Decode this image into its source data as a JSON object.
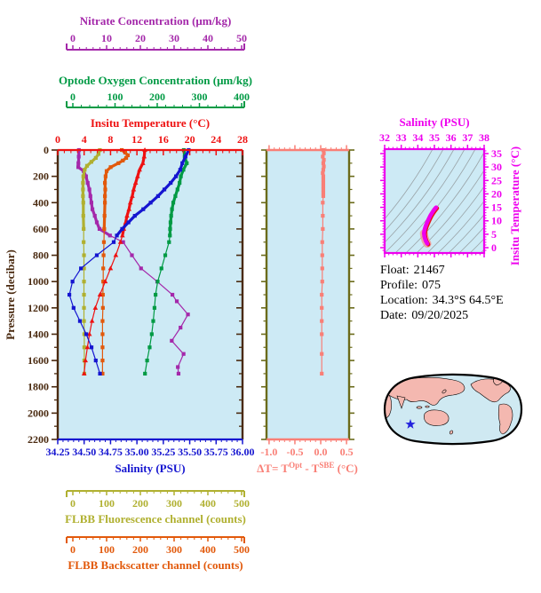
{
  "page": {
    "background": "#ffffff"
  },
  "info": {
    "lines": [
      {
        "label": "Float:",
        "value": "21467"
      },
      {
        "label": "Profile:",
        "value": "075"
      },
      {
        "label": "Location:",
        "value": "34.3°S  64.5°E"
      },
      {
        "label": "Date:",
        "value": "09/20/2025"
      }
    ]
  },
  "colors": {
    "plot_bg": "#cdeaf5",
    "pressure_axis": "#4a2a10",
    "nitrate": "#a428aa",
    "oxygen": "#009a44",
    "temperature": "#ee1111",
    "salinity": "#1515d0",
    "fluorescence": "#b0b030",
    "backscatter": "#e2590b",
    "delta_t": "#f97f76",
    "mid_spine": "#6b6b1b",
    "ts_frame": "#ee00ee",
    "ts_curve": "#ee00ee",
    "ts_curve_under": "#e8150f",
    "ts_contour": "#9aa4a8",
    "map_land": "#f4b8b0",
    "map_ocean": "#cfe9f2",
    "map_outline": "#000000",
    "star": "#2222dd"
  },
  "chart_data": [
    {
      "id": "profiles",
      "type": "line",
      "y_axis": {
        "label": "Pressure (decibar)",
        "range": [
          0,
          2200
        ],
        "ticks": [
          0,
          200,
          400,
          600,
          800,
          1000,
          1200,
          1400,
          1600,
          1800,
          2000,
          2200
        ],
        "minor_step": 100,
        "color": "#4a2a10"
      },
      "x_axes": [
        {
          "id": "nitrate",
          "label": "Nitrate Concentration (μm/kg)",
          "range": [
            0,
            50
          ],
          "ticks": [
            0,
            10,
            20,
            30,
            40,
            50
          ],
          "minor_step": 2,
          "color": "#a428aa",
          "placement": "top-detached-1"
        },
        {
          "id": "oxygen",
          "label": "Optode Oxygen Concentration (μm/kg)",
          "range": [
            0,
            400
          ],
          "ticks": [
            0,
            100,
            200,
            300,
            400
          ],
          "minor_step": 20,
          "color": "#009a44",
          "placement": "top-detached-2"
        },
        {
          "id": "temperature",
          "label": "Insitu Temperature (°C)",
          "range": [
            0,
            28
          ],
          "ticks": [
            0,
            4,
            8,
            12,
            16,
            20,
            24,
            28
          ],
          "minor_step": 1,
          "color": "#ee1111",
          "placement": "top-edge"
        },
        {
          "id": "salinity",
          "label": "Salinity (PSU)",
          "range": [
            34.25,
            36.0
          ],
          "ticks": [
            34.25,
            34.5,
            34.75,
            35.0,
            35.25,
            35.5,
            35.75,
            36.0
          ],
          "tick_labels": [
            "34.25",
            "34.50",
            "34.75",
            "35.00",
            "35.25",
            "35.50",
            "35.75",
            "36.00"
          ],
          "minor_step": 0.05,
          "color": "#1515d0",
          "placement": "bottom-edge"
        },
        {
          "id": "fluorescence",
          "label": "FLBB Fluorescence channel (counts)",
          "range": [
            0,
            500
          ],
          "ticks": [
            0,
            100,
            200,
            300,
            400,
            500
          ],
          "minor_step": 20,
          "color": "#b0b030",
          "placement": "bottom-detached-1"
        },
        {
          "id": "backscatter",
          "label": "FLBB Backscatter channel (counts)",
          "range": [
            0,
            500
          ],
          "ticks": [
            0,
            100,
            200,
            300,
            400,
            500
          ],
          "minor_step": 20,
          "color": "#e2590b",
          "placement": "bottom-detached-2"
        }
      ],
      "series": [
        {
          "name": "nitrate",
          "axis": "nitrate",
          "color": "#a428aa",
          "marker": "square",
          "points": [
            [
              0,
              1.8
            ],
            [
              50,
              1.75
            ],
            [
              100,
              1.65
            ],
            [
              130,
              1.6
            ],
            [
              160,
              3.2
            ],
            [
              200,
              3.9
            ],
            [
              250,
              4.4
            ],
            [
              300,
              4.9
            ],
            [
              350,
              5.2
            ],
            [
              400,
              5.5
            ],
            [
              450,
              5.8
            ],
            [
              500,
              6.5
            ],
            [
              550,
              7.1
            ],
            [
              600,
              7.9
            ],
            [
              650,
              11.0
            ],
            [
              700,
              14.9
            ],
            [
              800,
              17.5
            ],
            [
              900,
              20.2
            ],
            [
              1000,
              25.0
            ],
            [
              1100,
              29.5
            ],
            [
              1150,
              30.8
            ],
            [
              1250,
              34.1
            ],
            [
              1350,
              31.9
            ],
            [
              1450,
              29.3
            ],
            [
              1550,
              32.8
            ],
            [
              1650,
              31.1
            ],
            [
              1700,
              31.3
            ]
          ]
        },
        {
          "name": "fluorescence",
          "axis": "fluorescence",
          "color": "#b0b030",
          "marker": "square",
          "points": [
            [
              0,
              80
            ],
            [
              30,
              76
            ],
            [
              60,
              68
            ],
            [
              90,
              55
            ],
            [
              120,
              42
            ],
            [
              150,
              35
            ],
            [
              200,
              31
            ],
            [
              250,
              30
            ],
            [
              300,
              30
            ],
            [
              350,
              30
            ],
            [
              400,
              31
            ],
            [
              500,
              31
            ],
            [
              600,
              32
            ],
            [
              700,
              32
            ],
            [
              800,
              33
            ],
            [
              900,
              33
            ],
            [
              1000,
              33
            ],
            [
              1100,
              33
            ],
            [
              1200,
              33
            ],
            [
              1300,
              33
            ],
            [
              1400,
              34
            ],
            [
              1500,
              34
            ],
            [
              1600,
              34
            ],
            [
              1700,
              34
            ]
          ]
        },
        {
          "name": "backscatter",
          "axis": "backscatter",
          "color": "#e2590b",
          "marker": "square",
          "points": [
            [
              0,
              145
            ],
            [
              20,
              155
            ],
            [
              40,
              163
            ],
            [
              60,
              158
            ],
            [
              80,
              148
            ],
            [
              100,
              135
            ],
            [
              130,
              112
            ],
            [
              160,
              100
            ],
            [
              200,
              97
            ],
            [
              250,
              95
            ],
            [
              300,
              96
            ],
            [
              350,
              95
            ],
            [
              400,
              95
            ],
            [
              500,
              94
            ],
            [
              600,
              93
            ],
            [
              700,
              92
            ],
            [
              800,
              91
            ],
            [
              900,
              90
            ],
            [
              1000,
              90
            ],
            [
              1100,
              89
            ],
            [
              1200,
              89
            ],
            [
              1300,
              88
            ],
            [
              1400,
              88
            ],
            [
              1500,
              88
            ],
            [
              1600,
              88
            ],
            [
              1700,
              88
            ]
          ]
        },
        {
          "name": "oxygen",
          "axis": "oxygen",
          "color": "#009a44",
          "marker": "square",
          "points": [
            [
              0,
              263
            ],
            [
              50,
              265
            ],
            [
              100,
              270
            ],
            [
              150,
              262
            ],
            [
              200,
              256
            ],
            [
              250,
              253
            ],
            [
              300,
              248
            ],
            [
              350,
              243
            ],
            [
              400,
              238
            ],
            [
              450,
              235
            ],
            [
              500,
              233
            ],
            [
              550,
              231.5
            ],
            [
              600,
              230.5
            ],
            [
              650,
              230
            ],
            [
              700,
              228
            ],
            [
              800,
              219
            ],
            [
              900,
              210
            ],
            [
              1000,
              201
            ],
            [
              1100,
              196
            ],
            [
              1200,
              193.5
            ],
            [
              1300,
              190.5
            ],
            [
              1400,
              187
            ],
            [
              1500,
              182
            ],
            [
              1600,
              176
            ],
            [
              1700,
              171
            ]
          ]
        },
        {
          "name": "temperature",
          "axis": "temperature",
          "color": "#ee1111",
          "marker": "triangle",
          "points": [
            [
              0,
              13.2
            ],
            [
              50,
              13.1
            ],
            [
              100,
              12.9
            ],
            [
              150,
              12.4
            ],
            [
              200,
              12.1
            ],
            [
              250,
              11.8
            ],
            [
              300,
              11.5
            ],
            [
              350,
              11.3
            ],
            [
              400,
              11.0
            ],
            [
              450,
              10.8
            ],
            [
              500,
              10.5
            ],
            [
              550,
              10.3
            ],
            [
              600,
              10.0
            ],
            [
              650,
              9.8
            ],
            [
              700,
              9.5
            ],
            [
              800,
              8.8
            ],
            [
              900,
              8.0
            ],
            [
              1000,
              7.2
            ],
            [
              1100,
              6.4
            ],
            [
              1200,
              5.7
            ],
            [
              1300,
              5.2
            ],
            [
              1400,
              4.8
            ],
            [
              1500,
              4.5
            ],
            [
              1600,
              4.2
            ],
            [
              1700,
              4.0
            ]
          ]
        },
        {
          "name": "salinity",
          "axis": "salinity",
          "color": "#1515d0",
          "marker": "square",
          "points": [
            [
              0,
              35.49
            ],
            [
              50,
              35.46
            ],
            [
              100,
              35.43
            ],
            [
              150,
              35.41
            ],
            [
              200,
              35.37
            ],
            [
              250,
              35.32
            ],
            [
              300,
              35.26
            ],
            [
              350,
              35.2
            ],
            [
              400,
              35.13
            ],
            [
              450,
              35.06
            ],
            [
              500,
              34.98
            ],
            [
              550,
              34.92
            ],
            [
              600,
              34.86
            ],
            [
              650,
              34.81
            ],
            [
              700,
              34.78
            ],
            [
              800,
              34.62
            ],
            [
              900,
              34.47
            ],
            [
              1000,
              34.39
            ],
            [
              1100,
              34.36
            ],
            [
              1200,
              34.4
            ],
            [
              1300,
              34.46
            ],
            [
              1400,
              34.52
            ],
            [
              1500,
              34.57
            ],
            [
              1600,
              34.61
            ],
            [
              1700,
              34.65
            ]
          ]
        }
      ]
    },
    {
      "id": "delta_t",
      "type": "line",
      "x_axis": {
        "range": [
          -1.05,
          0.55
        ],
        "ticks": [
          -1.0,
          -0.5,
          0.0,
          0.5
        ],
        "tick_labels": [
          "-1.0",
          "-0.5",
          "0.0",
          "0.5"
        ],
        "minor_step": 0.1,
        "color": "#f97f76",
        "label_parts": {
          "p1": "ΔT= T",
          "sup1": "Opt",
          "p2": " - T",
          "sup2": "SBE",
          "p3": " (°C)"
        }
      },
      "y_axis": {
        "range": [
          0,
          2200
        ],
        "major_step": 200,
        "minor_step": 100,
        "color": "#6b6b1b"
      },
      "series": [
        {
          "name": "delta-t",
          "color": "#f97f76",
          "marker": "square",
          "points": [
            [
              0,
              0.05
            ],
            [
              25,
              0.06
            ],
            [
              50,
              0.04
            ],
            [
              75,
              0.06
            ],
            [
              100,
              0.05
            ],
            [
              125,
              0.06
            ],
            [
              150,
              0.05
            ],
            [
              175,
              0.04
            ],
            [
              200,
              0.05
            ],
            [
              225,
              0.05
            ],
            [
              250,
              0.05
            ],
            [
              275,
              0.05
            ],
            [
              300,
              0.05
            ],
            [
              325,
              0.05
            ],
            [
              350,
              0.05
            ],
            [
              400,
              0.04
            ],
            [
              500,
              0.04
            ],
            [
              600,
              0.04
            ],
            [
              700,
              0.03
            ],
            [
              800,
              0.03
            ],
            [
              900,
              0.03
            ],
            [
              1000,
              0.03
            ],
            [
              1100,
              0.02
            ],
            [
              1200,
              0.02
            ],
            [
              1300,
              0.02
            ],
            [
              1400,
              0.02
            ],
            [
              1550,
              0.02
            ],
            [
              1700,
              0.02
            ]
          ]
        }
      ]
    },
    {
      "id": "ts_diagram",
      "type": "line",
      "x_axis": {
        "label": "Salinity (PSU)",
        "range": [
          32,
          38
        ],
        "ticks": [
          32,
          33,
          34,
          35,
          36,
          37,
          38
        ],
        "minor_step": 0.25,
        "color": "#ee00ee"
      },
      "y_axis": {
        "label": "Insitu Temperature (°C)",
        "range": [
          -2,
          36.6
        ],
        "ticks": [
          0,
          5,
          10,
          15,
          20,
          25,
          30,
          35
        ],
        "minor_step": 1,
        "color": "#ee00ee"
      },
      "series": [
        {
          "name": "ts-curve",
          "color": "#ee00ee",
          "points": [
            [
              34.57,
              1.5
            ],
            [
              34.47,
              2.6
            ],
            [
              34.4,
              4.0
            ],
            [
              34.37,
              5.3
            ],
            [
              34.4,
              6.6
            ],
            [
              34.47,
              8.0
            ],
            [
              34.56,
              9.4
            ],
            [
              34.66,
              10.8
            ],
            [
              34.76,
              12.0
            ],
            [
              34.87,
              13.1
            ],
            [
              34.97,
              14.0
            ],
            [
              35.06,
              14.7
            ],
            [
              35.1,
              15.0
            ]
          ]
        }
      ],
      "contour_count": 17
    },
    {
      "id": "location_map",
      "type": "map",
      "star": {
        "x": 462,
        "y": 478
      }
    }
  ]
}
